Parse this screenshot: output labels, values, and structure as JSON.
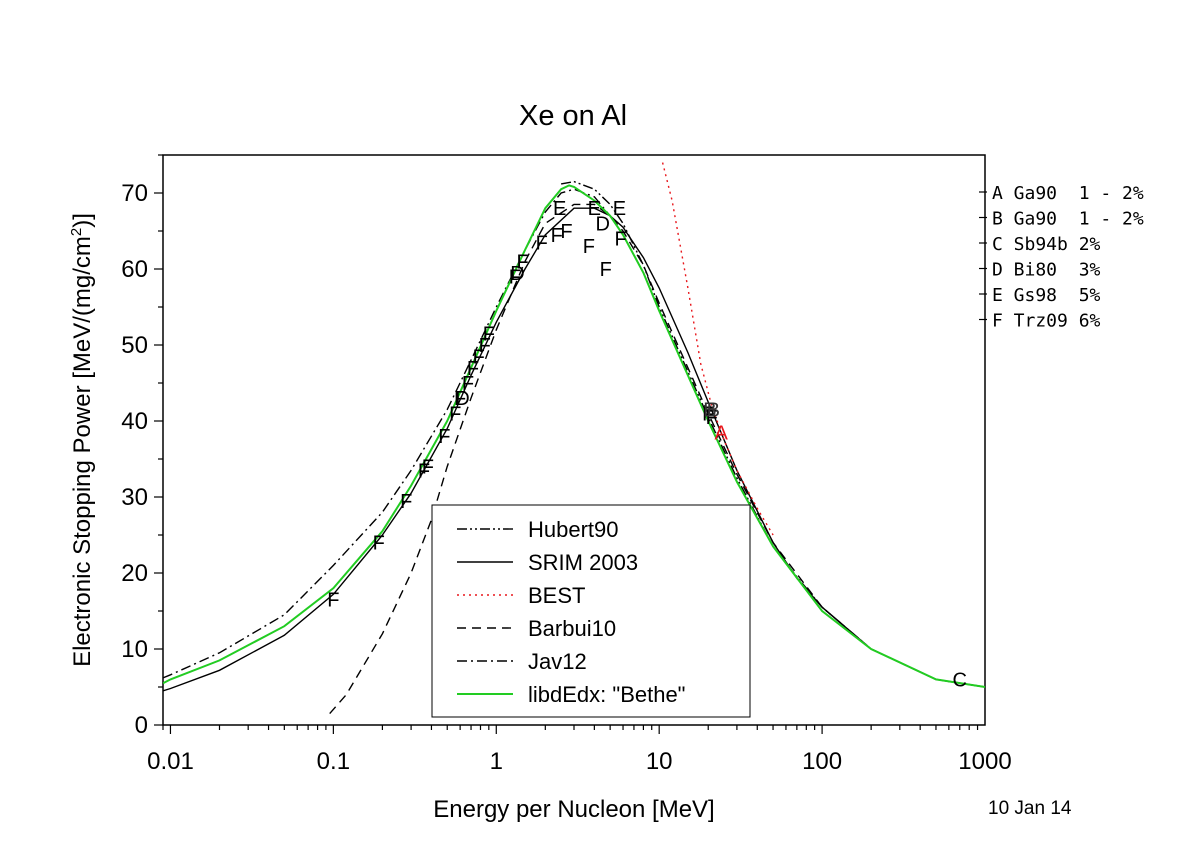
{
  "chart_data": {
    "type": "line",
    "title": "Xe on Al",
    "xlabel": "Energy per Nucleon [MeV]",
    "ylabel": "Electronic Stopping Power [MeV/(mg/cm2)]",
    "x_scale": "log",
    "xlim": [
      0.009,
      1000
    ],
    "ylim": [
      0,
      75
    ],
    "x_ticks": [
      {
        "value": 0.01,
        "label": "0.01"
      },
      {
        "value": 0.1,
        "label": "0.1"
      },
      {
        "value": 1,
        "label": "1"
      },
      {
        "value": 10,
        "label": "10"
      },
      {
        "value": 100,
        "label": "100"
      },
      {
        "value": 1000,
        "label": "1000"
      }
    ],
    "y_ticks": [
      0,
      10,
      20,
      30,
      40,
      50,
      60,
      70
    ],
    "legend_position": "bottom-center",
    "grid": false,
    "series": [
      {
        "name": "Hubert90",
        "color": "#000000",
        "dash": "dashdotdot",
        "points": [
          [
            2.5,
            71.2
          ],
          [
            3,
            71.5
          ],
          [
            4,
            70.5
          ],
          [
            5,
            68.5
          ],
          [
            6,
            66
          ],
          [
            8,
            60.5
          ],
          [
            10,
            55
          ],
          [
            15,
            46.5
          ],
          [
            20,
            40.5
          ],
          [
            30,
            32.5
          ],
          [
            50,
            23.5
          ],
          [
            70,
            19.5
          ],
          [
            100,
            15.5
          ],
          [
            200,
            10
          ],
          [
            500,
            6
          ],
          [
            1000,
            5
          ]
        ]
      },
      {
        "name": "SRIM 2003",
        "color": "#000000",
        "dash": "solid",
        "points": [
          [
            0.009,
            4.5
          ],
          [
            0.01,
            4.8
          ],
          [
            0.02,
            7.2
          ],
          [
            0.05,
            11.8
          ],
          [
            0.1,
            17.2
          ],
          [
            0.2,
            25
          ],
          [
            0.3,
            30.5
          ],
          [
            0.5,
            39
          ],
          [
            0.7,
            46
          ],
          [
            1,
            53
          ],
          [
            1.5,
            60
          ],
          [
            2,
            64.5
          ],
          [
            3,
            68
          ],
          [
            4,
            68
          ],
          [
            5,
            67
          ],
          [
            6,
            65.5
          ],
          [
            8,
            61.5
          ],
          [
            10,
            57.5
          ],
          [
            15,
            49
          ],
          [
            20,
            42.5
          ],
          [
            30,
            33.5
          ],
          [
            50,
            24
          ],
          [
            70,
            19.3
          ],
          [
            100,
            15.5
          ],
          [
            200,
            10
          ],
          [
            500,
            6
          ],
          [
            1000,
            5
          ]
        ]
      },
      {
        "name": "BEST",
        "color": "#e8161b",
        "dash": "dotted",
        "points": [
          [
            10.5,
            74
          ],
          [
            12,
            69
          ],
          [
            15,
            57.5
          ],
          [
            18,
            47.5
          ],
          [
            21,
            42
          ],
          [
            25,
            37.5
          ],
          [
            30,
            33.5
          ],
          [
            40,
            28.5
          ],
          [
            50,
            25
          ]
        ]
      },
      {
        "name": "Barbui10",
        "color": "#000000",
        "dash": "dashed",
        "points": [
          [
            0.095,
            1.5
          ],
          [
            0.12,
            4
          ],
          [
            0.2,
            12
          ],
          [
            0.3,
            20
          ],
          [
            0.4,
            27
          ],
          [
            0.5,
            34
          ],
          [
            0.7,
            43
          ],
          [
            1,
            52
          ],
          [
            1.5,
            61
          ],
          [
            2,
            66
          ],
          [
            3,
            68.5
          ],
          [
            4,
            68.5
          ],
          [
            5,
            67
          ],
          [
            6,
            65
          ],
          [
            8,
            60.5
          ],
          [
            10,
            55.5
          ],
          [
            15,
            47
          ],
          [
            20,
            41
          ],
          [
            30,
            33
          ],
          [
            50,
            24
          ],
          [
            100,
            15.5
          ],
          [
            200,
            10
          ],
          [
            500,
            6
          ],
          [
            1000,
            5
          ]
        ]
      },
      {
        "name": "Jav12",
        "color": "#000000",
        "dash": "dashdot",
        "points": [
          [
            0.009,
            6.2
          ],
          [
            0.01,
            6.6
          ],
          [
            0.02,
            9.5
          ],
          [
            0.05,
            14.5
          ],
          [
            0.1,
            21
          ],
          [
            0.2,
            28
          ],
          [
            0.3,
            33.5
          ],
          [
            0.5,
            41.5
          ],
          [
            0.7,
            48
          ],
          [
            1,
            55
          ],
          [
            1.5,
            62.5
          ],
          [
            2,
            67.5
          ],
          [
            2.5,
            70
          ],
          [
            3,
            70.5
          ],
          [
            4,
            69.5
          ],
          [
            5,
            67
          ],
          [
            6,
            64.5
          ],
          [
            8,
            59.5
          ],
          [
            10,
            54.5
          ],
          [
            15,
            46
          ],
          [
            20,
            40
          ],
          [
            30,
            32
          ],
          [
            50,
            23.5
          ],
          [
            100,
            15
          ],
          [
            200,
            10
          ],
          [
            500,
            6
          ],
          [
            1000,
            5
          ]
        ]
      },
      {
        "name": "libdEdx: \"Bethe\"",
        "color": "#22cc22",
        "dash": "solid",
        "points": [
          [
            0.009,
            5.5
          ],
          [
            0.01,
            6
          ],
          [
            0.02,
            8.5
          ],
          [
            0.05,
            13
          ],
          [
            0.1,
            18
          ],
          [
            0.2,
            25.5
          ],
          [
            0.3,
            31.5
          ],
          [
            0.5,
            40
          ],
          [
            0.7,
            47
          ],
          [
            1,
            54.5
          ],
          [
            1.5,
            62.5
          ],
          [
            2,
            68
          ],
          [
            2.5,
            70.5
          ],
          [
            2.8,
            71
          ],
          [
            3,
            70.8
          ],
          [
            4,
            69
          ],
          [
            5,
            67
          ],
          [
            6,
            64.5
          ],
          [
            8,
            59.5
          ],
          [
            10,
            54.5
          ],
          [
            15,
            46
          ],
          [
            20,
            40
          ],
          [
            30,
            32
          ],
          [
            50,
            23.5
          ],
          [
            100,
            15
          ],
          [
            200,
            10
          ],
          [
            500,
            6
          ],
          [
            1000,
            5
          ]
        ]
      }
    ],
    "markers": [
      {
        "label": "F",
        "points": [
          [
            0.1,
            16.5
          ],
          [
            0.19,
            24
          ],
          [
            0.28,
            29.5
          ],
          [
            0.36,
            33.5
          ],
          [
            0.38,
            34
          ],
          [
            0.48,
            38
          ],
          [
            0.56,
            41
          ],
          [
            0.6,
            43
          ],
          [
            0.67,
            45
          ],
          [
            0.72,
            47
          ],
          [
            0.78,
            48.5
          ],
          [
            0.85,
            50
          ],
          [
            0.9,
            51.5
          ],
          [
            1.3,
            59
          ],
          [
            1.45,
            61
          ],
          [
            1.9,
            63.5
          ],
          [
            2.35,
            64.5
          ],
          [
            2.7,
            65
          ],
          [
            3.7,
            63
          ],
          [
            4.7,
            60
          ],
          [
            5.8,
            64
          ],
          [
            20,
            41
          ],
          [
            21,
            40.5
          ]
        ]
      },
      {
        "label": "E",
        "points": [
          [
            2.45,
            68
          ],
          [
            4,
            68
          ],
          [
            5.7,
            68
          ]
        ]
      },
      {
        "label": "D",
        "points": [
          [
            0.62,
            43
          ],
          [
            1.35,
            59.5
          ],
          [
            4.5,
            66
          ]
        ]
      },
      {
        "label": "C",
        "points": [
          [
            700,
            6
          ]
        ]
      },
      {
        "label": "B",
        "points": [
          [
            20.5,
            41.5
          ],
          [
            21.5,
            41.5
          ]
        ]
      },
      {
        "label": "A",
        "points": [
          [
            24,
            38.5
          ]
        ]
      }
    ],
    "marker_legend": [
      {
        "id": "A",
        "text": "Ga90  1 - 2%"
      },
      {
        "id": "B",
        "text": "Ga90  1 - 2%"
      },
      {
        "id": "C",
        "text": "Sb94b 2%"
      },
      {
        "id": "D",
        "text": "Bi80  3%"
      },
      {
        "id": "E",
        "text": "Gs98  5%"
      },
      {
        "id": "F",
        "text": "Trz09 6%"
      }
    ]
  },
  "date_stamp": "10 Jan 14"
}
